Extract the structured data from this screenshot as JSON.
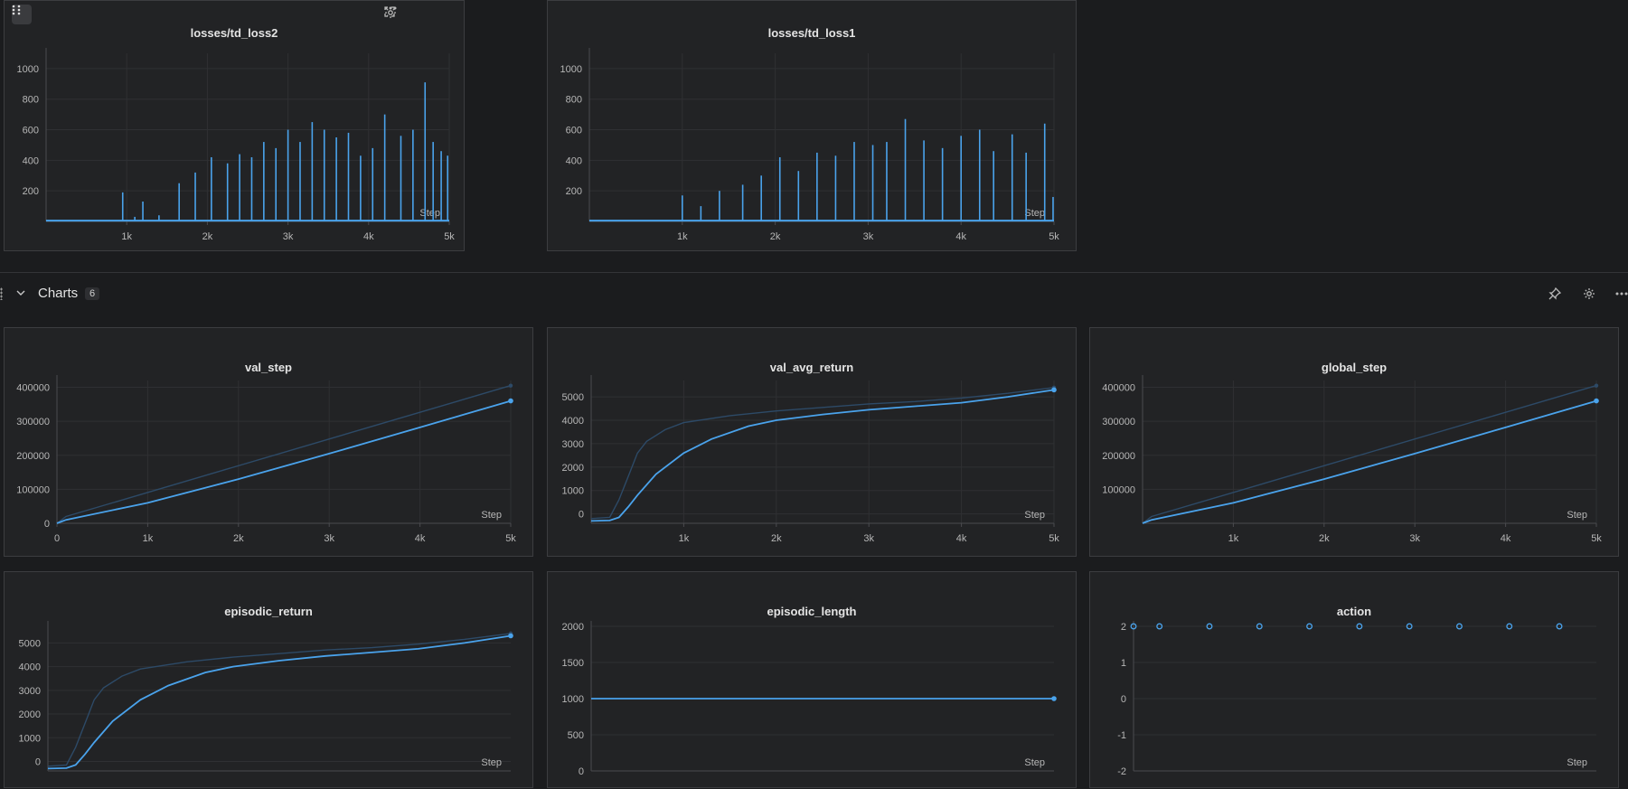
{
  "section": {
    "title": "Charts",
    "count": "6"
  },
  "icons": {
    "drag": "drag-handle-icon",
    "fullscreen": "fullscreen-icon",
    "settings": "gear-icon",
    "more": "more-icon",
    "collapse": "chevron-down-icon",
    "pin": "pin-icon"
  },
  "colors": {
    "line": "#4aa3ec",
    "raw": "#2d4a67",
    "bg": "#222325"
  },
  "x_axis_label": "Step",
  "chart_data": [
    {
      "id": "td_loss2",
      "type": "line",
      "title": "losses/td_loss2",
      "xlim": [
        0,
        5000
      ],
      "ylim": [
        0,
        1100
      ],
      "yticks": [
        200,
        400,
        600,
        800,
        1000
      ],
      "yticklabels": [
        "200",
        "400",
        "600",
        "800",
        "1000"
      ],
      "xticks": [
        1000,
        2000,
        3000,
        4000,
        5000
      ],
      "xticklabels": [
        "1k",
        "2k",
        "3k",
        "4k",
        "5k"
      ],
      "spikes": [
        [
          950,
          190
        ],
        [
          1100,
          30
        ],
        [
          1400,
          40
        ],
        [
          1200,
          130
        ],
        [
          1650,
          250
        ],
        [
          1850,
          320
        ],
        [
          2050,
          420
        ],
        [
          2250,
          380
        ],
        [
          2400,
          440
        ],
        [
          2550,
          420
        ],
        [
          2700,
          520
        ],
        [
          2850,
          480
        ],
        [
          3000,
          600
        ],
        [
          3150,
          520
        ],
        [
          3300,
          650
        ],
        [
          3450,
          600
        ],
        [
          3600,
          550
        ],
        [
          3750,
          580
        ],
        [
          3900,
          430
        ],
        [
          4050,
          480
        ],
        [
          4200,
          700
        ],
        [
          4400,
          560
        ],
        [
          4550,
          600
        ],
        [
          4700,
          910
        ],
        [
          4800,
          520
        ],
        [
          4900,
          460
        ],
        [
          4980,
          430
        ]
      ],
      "baseline": 5
    },
    {
      "id": "td_loss1",
      "type": "line",
      "title": "losses/td_loss1",
      "xlim": [
        0,
        5000
      ],
      "ylim": [
        0,
        1100
      ],
      "yticks": [
        200,
        400,
        600,
        800,
        1000
      ],
      "yticklabels": [
        "200",
        "400",
        "600",
        "800",
        "1000"
      ],
      "xticks": [
        1000,
        2000,
        3000,
        4000,
        5000
      ],
      "xticklabels": [
        "1k",
        "2k",
        "3k",
        "4k",
        "5k"
      ],
      "spikes": [
        [
          1000,
          170
        ],
        [
          1200,
          100
        ],
        [
          1400,
          200
        ],
        [
          1650,
          240
        ],
        [
          1850,
          300
        ],
        [
          2050,
          420
        ],
        [
          2250,
          330
        ],
        [
          2450,
          450
        ],
        [
          2650,
          430
        ],
        [
          2850,
          520
        ],
        [
          3050,
          500
        ],
        [
          3200,
          520
        ],
        [
          3400,
          670
        ],
        [
          3600,
          530
        ],
        [
          3800,
          480
        ],
        [
          4000,
          560
        ],
        [
          4200,
          600
        ],
        [
          4350,
          460
        ],
        [
          4550,
          570
        ],
        [
          4700,
          450
        ],
        [
          4900,
          640
        ],
        [
          4990,
          160
        ]
      ],
      "baseline": 5
    },
    {
      "id": "val_step",
      "type": "line",
      "title": "val_step",
      "xlim": [
        0,
        5000
      ],
      "ylim": [
        0,
        420000
      ],
      "yticks": [
        0,
        100000,
        200000,
        300000,
        400000
      ],
      "yticklabels": [
        "0",
        "100000",
        "200000",
        "300000",
        "400000"
      ],
      "xticks": [
        0,
        1000,
        2000,
        3000,
        4000,
        5000
      ],
      "xticklabels": [
        "0",
        "1k",
        "2k",
        "3k",
        "4k",
        "5k"
      ],
      "raw": [
        [
          0,
          0
        ],
        [
          100,
          20000
        ],
        [
          5000,
          405000
        ]
      ],
      "smoothed": [
        [
          0,
          0
        ],
        [
          100,
          10000
        ],
        [
          1000,
          60000
        ],
        [
          2000,
          130000
        ],
        [
          3000,
          205000
        ],
        [
          4000,
          282000
        ],
        [
          5000,
          360000
        ]
      ]
    },
    {
      "id": "val_avg_return",
      "type": "line",
      "title": "val_avg_return",
      "xlim": [
        0,
        5000
      ],
      "ylim": [
        -400,
        5700
      ],
      "yticks": [
        0,
        1000,
        2000,
        3000,
        4000,
        5000
      ],
      "yticklabels": [
        "0",
        "1000",
        "2000",
        "3000",
        "4000",
        "5000"
      ],
      "xticks": [
        1000,
        2000,
        3000,
        4000,
        5000
      ],
      "xticklabels": [
        "1k",
        "2k",
        "3k",
        "4k",
        "5k"
      ],
      "raw": [
        [
          0,
          -200
        ],
        [
          200,
          -150
        ],
        [
          300,
          600
        ],
        [
          400,
          1600
        ],
        [
          500,
          2600
        ],
        [
          600,
          3100
        ],
        [
          800,
          3600
        ],
        [
          1000,
          3900
        ],
        [
          1500,
          4200
        ],
        [
          2000,
          4400
        ],
        [
          2500,
          4550
        ],
        [
          3000,
          4700
        ],
        [
          3500,
          4800
        ],
        [
          4000,
          4950
        ],
        [
          4500,
          5150
        ],
        [
          5000,
          5400
        ]
      ],
      "smoothed": [
        [
          0,
          -300
        ],
        [
          200,
          -280
        ],
        [
          300,
          -150
        ],
        [
          400,
          300
        ],
        [
          500,
          800
        ],
        [
          700,
          1700
        ],
        [
          1000,
          2600
        ],
        [
          1300,
          3200
        ],
        [
          1700,
          3750
        ],
        [
          2000,
          4000
        ],
        [
          2500,
          4250
        ],
        [
          3000,
          4450
        ],
        [
          3500,
          4600
        ],
        [
          4000,
          4750
        ],
        [
          4500,
          5000
        ],
        [
          5000,
          5300
        ]
      ]
    },
    {
      "id": "global_step",
      "type": "line",
      "title": "global_step",
      "xlim": [
        0,
        5000
      ],
      "ylim": [
        0,
        420000
      ],
      "yticks": [
        100000,
        200000,
        300000,
        400000
      ],
      "yticklabels": [
        "100000",
        "200000",
        "300000",
        "400000"
      ],
      "xticks": [
        1000,
        2000,
        3000,
        4000,
        5000
      ],
      "xticklabels": [
        "1k",
        "2k",
        "3k",
        "4k",
        "5k"
      ],
      "raw": [
        [
          0,
          0
        ],
        [
          100,
          20000
        ],
        [
          5000,
          405000
        ]
      ],
      "smoothed": [
        [
          0,
          0
        ],
        [
          100,
          10000
        ],
        [
          1000,
          60000
        ],
        [
          2000,
          130000
        ],
        [
          3000,
          205000
        ],
        [
          4000,
          282000
        ],
        [
          5000,
          360000
        ]
      ]
    },
    {
      "id": "episodic_return",
      "type": "line",
      "title": "episodic_return",
      "xlim": [
        0,
        5000
      ],
      "ylim": [
        -400,
        5700
      ],
      "yticks": [
        0,
        1000,
        2000,
        3000,
        4000,
        5000
      ],
      "yticklabels": [
        "0",
        "1000",
        "2000",
        "3000",
        "4000",
        "5000"
      ],
      "xticks": [],
      "xticklabels": [],
      "raw": [
        [
          0,
          -200
        ],
        [
          200,
          -150
        ],
        [
          300,
          600
        ],
        [
          400,
          1600
        ],
        [
          500,
          2600
        ],
        [
          600,
          3100
        ],
        [
          800,
          3600
        ],
        [
          1000,
          3900
        ],
        [
          1500,
          4200
        ],
        [
          2000,
          4400
        ],
        [
          2500,
          4550
        ],
        [
          3000,
          4700
        ],
        [
          3500,
          4800
        ],
        [
          4000,
          4950
        ],
        [
          4500,
          5150
        ],
        [
          5000,
          5400
        ]
      ],
      "smoothed": [
        [
          0,
          -300
        ],
        [
          200,
          -280
        ],
        [
          300,
          -150
        ],
        [
          400,
          300
        ],
        [
          500,
          800
        ],
        [
          700,
          1700
        ],
        [
          1000,
          2600
        ],
        [
          1300,
          3200
        ],
        [
          1700,
          3750
        ],
        [
          2000,
          4000
        ],
        [
          2500,
          4250
        ],
        [
          3000,
          4450
        ],
        [
          3500,
          4600
        ],
        [
          4000,
          4750
        ],
        [
          4500,
          5000
        ],
        [
          5000,
          5300
        ]
      ]
    },
    {
      "id": "episodic_length",
      "type": "line",
      "title": "episodic_length",
      "xlim": [
        0,
        5000
      ],
      "ylim": [
        0,
        2000
      ],
      "yticks": [
        0,
        500,
        1000,
        1500,
        2000
      ],
      "yticklabels": [
        "0",
        "500",
        "1000",
        "1500",
        "2000"
      ],
      "xticks": [],
      "xticklabels": [],
      "smoothed": [
        [
          0,
          1000
        ],
        [
          5000,
          1000
        ]
      ]
    },
    {
      "id": "action",
      "type": "scatter",
      "title": "action",
      "xlim": [
        0,
        5000
      ],
      "ylim": [
        -2,
        2
      ],
      "yticks": [
        -2,
        -1,
        0,
        1,
        2
      ],
      "yticklabels": [
        "-2",
        "-1",
        "0",
        "1",
        "2"
      ],
      "xticks": [],
      "xticklabels": [],
      "points": [
        [
          0,
          2
        ],
        [
          280,
          2
        ],
        [
          820,
          2
        ],
        [
          1360,
          2
        ],
        [
          1900,
          2
        ],
        [
          2440,
          2
        ],
        [
          2980,
          2
        ],
        [
          3520,
          2
        ],
        [
          4060,
          2
        ],
        [
          4600,
          2
        ]
      ]
    }
  ]
}
